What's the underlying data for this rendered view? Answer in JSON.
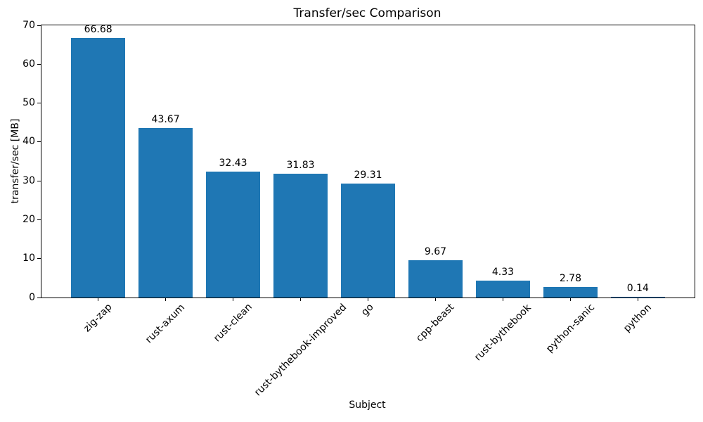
{
  "chart_data": {
    "type": "bar",
    "title": "Transfer/sec Comparison",
    "xlabel": "Subject",
    "ylabel": "transfer/sec [MB]",
    "categories": [
      "zig-zap",
      "rust-axum",
      "rust-clean",
      "rust-bythebook-improved",
      "go",
      "cpp-beast",
      "rust-bythebook",
      "python-sanic",
      "python"
    ],
    "values": [
      66.68,
      43.67,
      32.43,
      31.83,
      29.31,
      9.67,
      4.33,
      2.78,
      0.14
    ],
    "bar_value_labels": [
      "66.68",
      "43.67",
      "32.43",
      "31.83",
      "29.31",
      "9.67",
      "4.33",
      "2.78",
      "0.14"
    ],
    "ylim": [
      0,
      70
    ],
    "yticks": [
      "0",
      "10",
      "20",
      "30",
      "40",
      "50",
      "60",
      "70"
    ],
    "bar_color": "#1f77b4",
    "spine_color": "#000000",
    "grid": false,
    "legend": null,
    "bar_width_ratio": 0.8,
    "x_tick_rotation_deg": 45
  }
}
